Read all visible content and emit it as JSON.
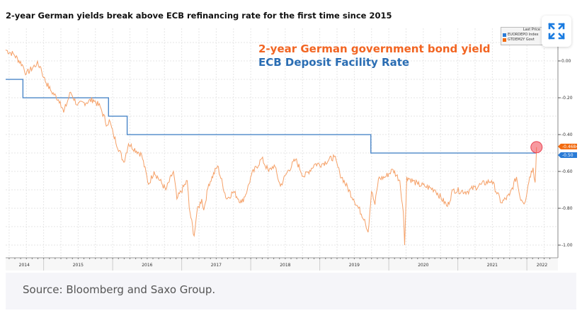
{
  "title": "2-year German yields break above ECB refinancing rate for the first time since 2015",
  "annotations": {
    "yield_label": "2-year German government bond yield",
    "rate_label": "ECB Deposit Facility Rate"
  },
  "legend": {
    "header": "Last Price",
    "items": [
      {
        "label": "EUORDEPO Index",
        "color": "#2a7bd6"
      },
      {
        "label": "GTDEM2Y Govt",
        "color": "#f26a0f"
      }
    ]
  },
  "source": "Source: Bloomberg and Saxo Group.",
  "expand_icon": "expand-arrows-icon",
  "chart_data": {
    "type": "line",
    "xlim": [
      2014.45,
      2022.45
    ],
    "ylim": [
      -1.069,
      0.177
    ],
    "x_ticks": [
      "2014",
      "2015",
      "2016",
      "2017",
      "2018",
      "2019",
      "2020",
      "2021",
      "2022"
    ],
    "y_ticks": [
      {
        "value": 0.0,
        "label": "0.00"
      },
      {
        "value": -0.2,
        "label": "-0.20"
      },
      {
        "value": -0.4,
        "label": "-0.40"
      },
      {
        "value": -0.6,
        "label": "-0.60"
      },
      {
        "value": -0.8,
        "label": "-0.80"
      },
      {
        "value": -1.0,
        "label": "-1.00"
      }
    ],
    "last_values": [
      {
        "series": "GTDEM2Y Govt",
        "label": "-0.4684",
        "color": "#f26a0f"
      },
      {
        "series": "EUORDEPO Index",
        "label": "-0.50",
        "color": "#2a7bd6"
      }
    ],
    "series": [
      {
        "name": "ECB Deposit Facility Rate",
        "color": "#4a86c8",
        "step": true,
        "points": [
          [
            2014.45,
            -0.1
          ],
          [
            2014.7,
            -0.2
          ],
          [
            2015.94,
            -0.3
          ],
          [
            2016.21,
            -0.4
          ],
          [
            2019.74,
            -0.5
          ],
          [
            2022.14,
            -0.5
          ]
        ]
      },
      {
        "name": "2-year German government bond yield",
        "color": "#f5a067",
        "points": [
          [
            2014.45,
            0.06
          ],
          [
            2014.57,
            0.035
          ],
          [
            2014.69,
            -0.02
          ],
          [
            2014.75,
            -0.07
          ],
          [
            2014.9,
            -0.015
          ],
          [
            2014.96,
            -0.035
          ],
          [
            2015.0,
            -0.09
          ],
          [
            2015.1,
            -0.16
          ],
          [
            2015.24,
            -0.22
          ],
          [
            2015.29,
            -0.28
          ],
          [
            2015.39,
            -0.17
          ],
          [
            2015.49,
            -0.24
          ],
          [
            2015.72,
            -0.21
          ],
          [
            2015.82,
            -0.25
          ],
          [
            2015.92,
            -0.35
          ],
          [
            2015.95,
            -0.32
          ],
          [
            2016.01,
            -0.4
          ],
          [
            2016.16,
            -0.55
          ],
          [
            2016.23,
            -0.45
          ],
          [
            2016.42,
            -0.51
          ],
          [
            2016.52,
            -0.67
          ],
          [
            2016.6,
            -0.6
          ],
          [
            2016.77,
            -0.7
          ],
          [
            2016.88,
            -0.6
          ],
          [
            2016.93,
            -0.75
          ],
          [
            2017.08,
            -0.65
          ],
          [
            2017.11,
            -0.8
          ],
          [
            2017.18,
            -0.95
          ],
          [
            2017.22,
            -0.82
          ],
          [
            2017.29,
            -0.75
          ],
          [
            2017.32,
            -0.81
          ],
          [
            2017.39,
            -0.67
          ],
          [
            2017.52,
            -0.57
          ],
          [
            2017.65,
            -0.75
          ],
          [
            2017.75,
            -0.71
          ],
          [
            2017.87,
            -0.77
          ],
          [
            2017.95,
            -0.7
          ],
          [
            2018.01,
            -0.62
          ],
          [
            2018.16,
            -0.53
          ],
          [
            2018.26,
            -0.6
          ],
          [
            2018.34,
            -0.565
          ],
          [
            2018.43,
            -0.68
          ],
          [
            2018.52,
            -0.61
          ],
          [
            2018.65,
            -0.535
          ],
          [
            2018.77,
            -0.63
          ],
          [
            2018.93,
            -0.56
          ],
          [
            2019.03,
            -0.56
          ],
          [
            2019.21,
            -0.52
          ],
          [
            2019.29,
            -0.61
          ],
          [
            2019.49,
            -0.75
          ],
          [
            2019.65,
            -0.86
          ],
          [
            2019.7,
            -0.93
          ],
          [
            2019.75,
            -0.71
          ],
          [
            2019.8,
            -0.78
          ],
          [
            2019.85,
            -0.64
          ],
          [
            2019.95,
            -0.63
          ],
          [
            2020.06,
            -0.59
          ],
          [
            2020.16,
            -0.65
          ],
          [
            2020.21,
            -0.82
          ],
          [
            2020.23,
            -1.0
          ],
          [
            2020.26,
            -0.63
          ],
          [
            2020.42,
            -0.67
          ],
          [
            2020.52,
            -0.68
          ],
          [
            2020.67,
            -0.7
          ],
          [
            2020.85,
            -0.79
          ],
          [
            2020.93,
            -0.7
          ],
          [
            2021.13,
            -0.71
          ],
          [
            2021.34,
            -0.67
          ],
          [
            2021.49,
            -0.65
          ],
          [
            2021.63,
            -0.77
          ],
          [
            2021.75,
            -0.73
          ],
          [
            2021.85,
            -0.63
          ],
          [
            2021.9,
            -0.74
          ],
          [
            2021.97,
            -0.77
          ],
          [
            2022.04,
            -0.63
          ],
          [
            2022.09,
            -0.58
          ],
          [
            2022.12,
            -0.66
          ],
          [
            2022.14,
            -0.4684
          ]
        ]
      }
    ]
  }
}
